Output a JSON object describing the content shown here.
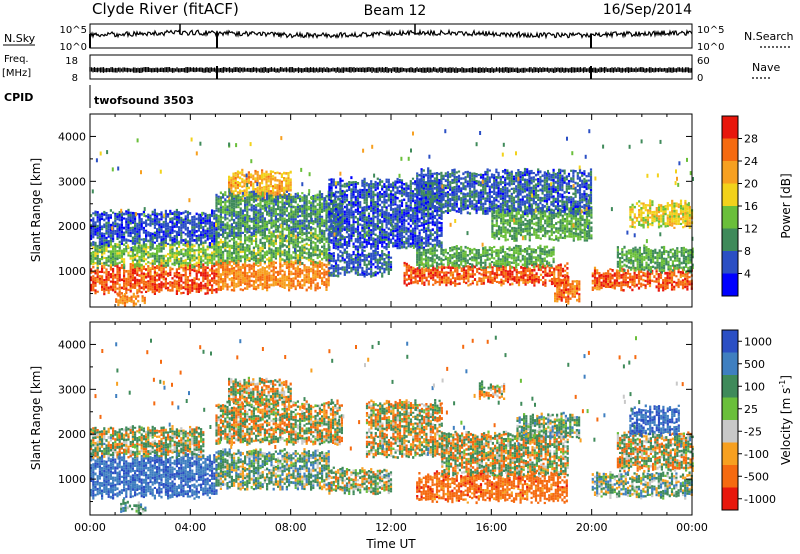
{
  "header": {
    "station": "Clyde River (fitACF)",
    "beam": "Beam 12",
    "date": "16/Sep/2014"
  },
  "strip_nsky": {
    "label": "N.Sky",
    "ticks_left": [
      "10^5",
      "10^0"
    ],
    "ticks_right": [
      "10^5",
      "10^0"
    ],
    "right_label": "N.Search"
  },
  "strip_freq": {
    "label_line1": "Freq.",
    "label_line2": "[MHz]",
    "ticks_left": [
      "18",
      "8"
    ],
    "ticks_right": [
      "60",
      "0"
    ],
    "right_label": "Nave"
  },
  "cpid": {
    "label": "CPID",
    "value": "twofsound 3503"
  },
  "chart_data": [
    {
      "type": "heatmap",
      "title": "",
      "quantity": "Power",
      "xlabel": "",
      "ylabel": "Slant Range [km]",
      "x_range_hours": [
        0,
        24
      ],
      "ylim": [
        200,
        4500
      ],
      "yticks": [
        "1000",
        "2000",
        "3000",
        "4000"
      ],
      "colorbar": {
        "label": "Power [dB]",
        "tick_labels": [
          "4",
          "8",
          "12",
          "16",
          "20",
          "24",
          "28"
        ],
        "colors": [
          "#0000ff",
          "#2b4fc4",
          "#3f8a5a",
          "#6abf3a",
          "#f2d21b",
          "#f7a020",
          "#f56a10",
          "#e8170c"
        ],
        "range": [
          0,
          32
        ]
      },
      "bands": [
        {
          "t0": 0,
          "t1": 5,
          "r0": 500,
          "r1": 1100,
          "value": 27
        },
        {
          "t0": 0,
          "t1": 5,
          "r0": 1100,
          "r1": 1600,
          "value": 14
        },
        {
          "t0": 0,
          "t1": 5,
          "r0": 1600,
          "r1": 2300,
          "value": 6
        },
        {
          "t0": 1,
          "t1": 2.2,
          "r0": 250,
          "r1": 450,
          "value": 24
        },
        {
          "t0": 5,
          "t1": 9.5,
          "r0": 600,
          "r1": 1200,
          "value": 24
        },
        {
          "t0": 5,
          "t1": 9.5,
          "r0": 1200,
          "r1": 1800,
          "value": 13
        },
        {
          "t0": 5.5,
          "t1": 8,
          "r0": 2600,
          "r1": 3200,
          "value": 21
        },
        {
          "t0": 5,
          "t1": 10,
          "r0": 1800,
          "r1": 2700,
          "value": 10
        },
        {
          "t0": 9.5,
          "t1": 12,
          "r0": 900,
          "r1": 1400,
          "value": 7
        },
        {
          "t0": 9.5,
          "t1": 14,
          "r0": 1500,
          "r1": 3000,
          "value": 6
        },
        {
          "t0": 12.5,
          "t1": 19,
          "r0": 700,
          "r1": 1100,
          "value": 27
        },
        {
          "t0": 13,
          "t1": 18.5,
          "r0": 1100,
          "r1": 1500,
          "value": 12
        },
        {
          "t0": 18.5,
          "t1": 19.5,
          "r0": 300,
          "r1": 800,
          "value": 26
        },
        {
          "t0": 16,
          "t1": 20,
          "r0": 1700,
          "r1": 2400,
          "value": 12
        },
        {
          "t0": 20,
          "t1": 24,
          "r0": 600,
          "r1": 1000,
          "value": 27
        },
        {
          "t0": 21,
          "t1": 24,
          "r0": 1000,
          "r1": 1500,
          "value": 12
        },
        {
          "t0": 21.5,
          "t1": 24,
          "r0": 2000,
          "r1": 2500,
          "value": 18
        },
        {
          "t0": 13,
          "t1": 20,
          "r0": 2300,
          "r1": 3200,
          "value": 7
        }
      ]
    },
    {
      "type": "heatmap",
      "title": "",
      "quantity": "Velocity",
      "xlabel": "Time UT",
      "ylabel": "Slant Range [km]",
      "x_range_hours": [
        0,
        24
      ],
      "ylim": [
        200,
        4500
      ],
      "yticks": [
        "1000",
        "2000",
        "3000",
        "4000"
      ],
      "xticks": [
        "00:00",
        "04:00",
        "08:00",
        "12:00",
        "16:00",
        "20:00",
        "00:00"
      ],
      "colorbar": {
        "label": "Velocity [m s",
        "label_superscript": "-1",
        "label_close": "]",
        "tick_labels": [
          "1000",
          "500",
          "100",
          "25",
          "-25",
          "-100",
          "-500",
          "-1000"
        ],
        "colors": [
          "#2b4fc4",
          "#3f7fc0",
          "#3f8a5a",
          "#6abf3a",
          "#c8c8c8",
          "#f7a020",
          "#f56a10",
          "#e8170c"
        ]
      },
      "bands": [
        {
          "t0": 0,
          "t1": 5,
          "r0": 600,
          "r1": 1500,
          "value": 700
        },
        {
          "t0": 0,
          "t1": 4.5,
          "r0": 1500,
          "r1": 2100,
          "value": 60
        },
        {
          "t0": 1.2,
          "t1": 2.2,
          "r0": 250,
          "r1": 450,
          "value": 200
        },
        {
          "t0": 5,
          "t1": 9.5,
          "r0": 800,
          "r1": 1600,
          "value": 150
        },
        {
          "t0": 5,
          "t1": 10,
          "r0": 1800,
          "r1": 2700,
          "value": 0
        },
        {
          "t0": 5.5,
          "t1": 8,
          "r0": 2700,
          "r1": 3200,
          "value": 0
        },
        {
          "t0": 9.5,
          "t1": 12,
          "r0": 700,
          "r1": 1200,
          "value": 60
        },
        {
          "t0": 11,
          "t1": 14,
          "r0": 1500,
          "r1": 2700,
          "value": 0
        },
        {
          "t0": 13,
          "t1": 19,
          "r0": 500,
          "r1": 1100,
          "value": -300
        },
        {
          "t0": 14,
          "t1": 19,
          "r0": 1100,
          "r1": 2000,
          "value": 0
        },
        {
          "t0": 17,
          "t1": 19.5,
          "r0": 1900,
          "r1": 2400,
          "value": 150
        },
        {
          "t0": 20,
          "t1": 24,
          "r0": 600,
          "r1": 1100,
          "value": 150
        },
        {
          "t0": 21,
          "t1": 24,
          "r0": 1200,
          "r1": 2000,
          "value": 0
        },
        {
          "t0": 21.5,
          "t1": 23.5,
          "r0": 2000,
          "r1": 2600,
          "value": 700
        },
        {
          "t0": 15.5,
          "t1": 16.5,
          "r0": 2800,
          "r1": 3100,
          "value": 0
        }
      ]
    }
  ]
}
